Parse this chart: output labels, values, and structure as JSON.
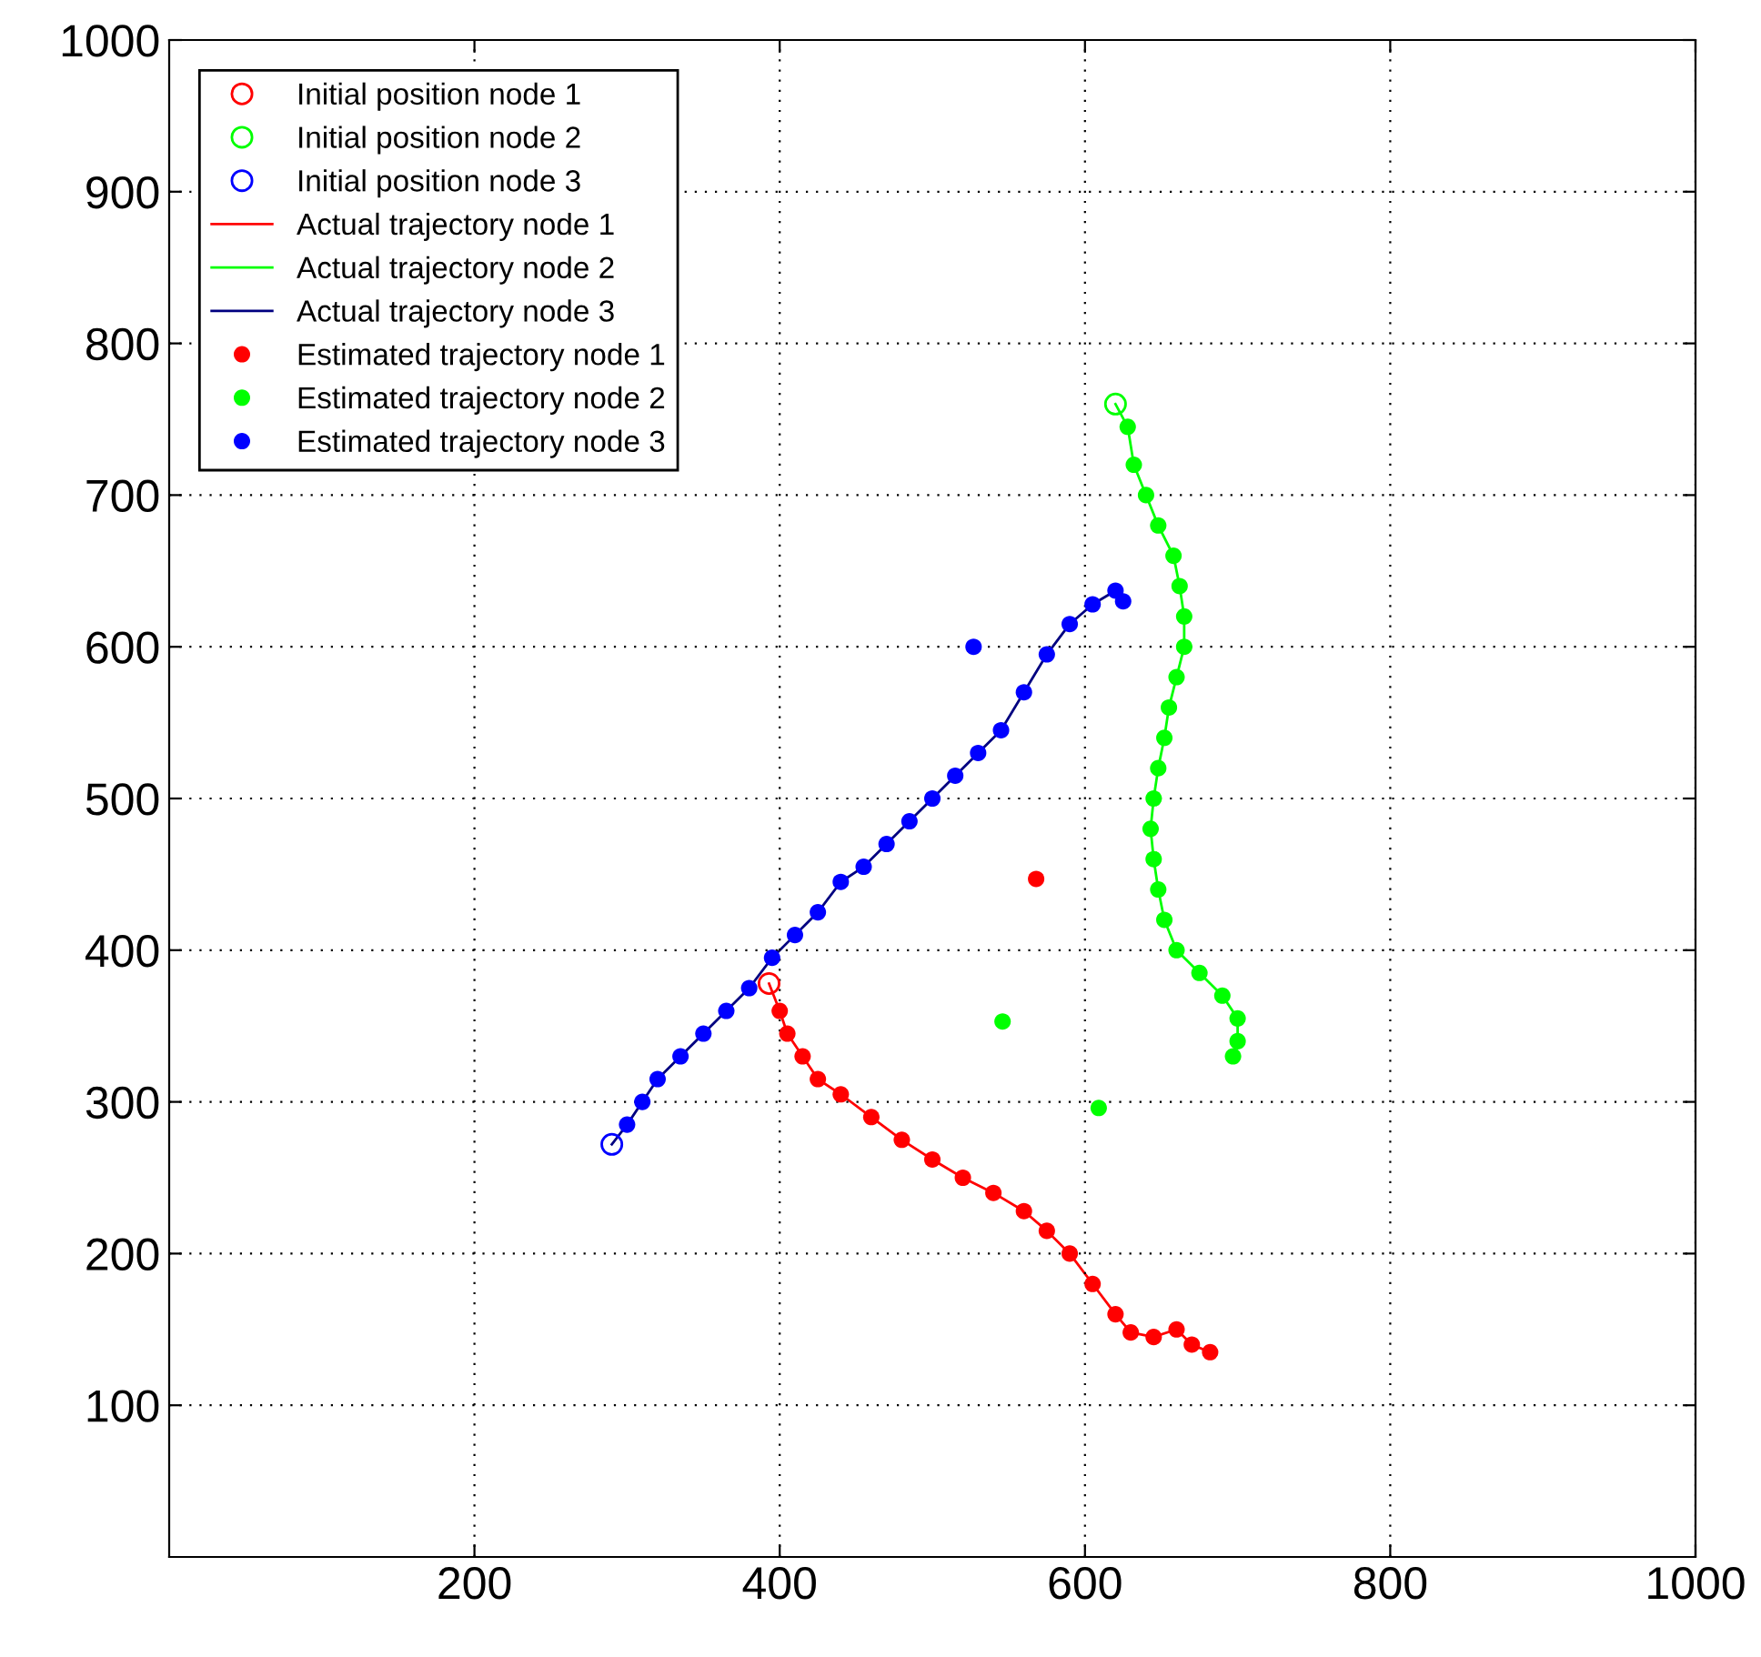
{
  "chart_data": {
    "type": "scatter",
    "xlim": [
      0,
      1000
    ],
    "ylim": [
      0,
      1000
    ],
    "xticks": [
      200,
      400,
      600,
      800,
      1000
    ],
    "yticks": [
      100,
      200,
      300,
      400,
      500,
      600,
      700,
      800,
      900,
      1000
    ],
    "grid": true,
    "legend": "top left",
    "series": [
      {
        "name": "Initial position node 1",
        "marker": "circle",
        "color": "#ff0000",
        "x": [
          393
        ],
        "values": [
          378
        ]
      },
      {
        "name": "Initial position node 2",
        "marker": "circle",
        "color": "#00ff00",
        "x": [
          620
        ],
        "values": [
          760
        ]
      },
      {
        "name": "Initial position node 3",
        "marker": "circle",
        "color": "#0000ff",
        "x": [
          290
        ],
        "values": [
          272
        ]
      },
      {
        "name": "Actual trajectory node 1",
        "type": "line",
        "color": "#ff0000",
        "x": [
          393,
          400,
          405,
          415,
          425,
          440,
          460,
          480,
          500,
          520,
          540,
          560,
          575,
          590,
          605,
          620,
          630,
          645,
          660,
          670,
          682
        ],
        "values": [
          378,
          360,
          345,
          330,
          315,
          305,
          290,
          275,
          262,
          250,
          240,
          228,
          215,
          200,
          180,
          160,
          148,
          145,
          150,
          140,
          135
        ]
      },
      {
        "name": "Actual trajectory node 2",
        "type": "line",
        "color": "#00ff00",
        "x": [
          620,
          628,
          632,
          640,
          648,
          658,
          662,
          665,
          665,
          660,
          655,
          652,
          648,
          645,
          643,
          645,
          648,
          652,
          660,
          675,
          690,
          700,
          700,
          697
        ],
        "values": [
          760,
          745,
          720,
          700,
          680,
          660,
          640,
          620,
          600,
          580,
          560,
          540,
          520,
          500,
          480,
          460,
          440,
          420,
          400,
          385,
          370,
          355,
          340,
          330
        ]
      },
      {
        "name": "Actual trajectory node 3",
        "type": "line",
        "color": "#000080",
        "x": [
          290,
          300,
          310,
          320,
          335,
          350,
          365,
          380,
          395,
          410,
          425,
          440,
          455,
          470,
          485,
          500,
          515,
          530,
          545,
          560,
          575,
          590,
          605,
          620,
          625
        ],
        "values": [
          272,
          285,
          300,
          315,
          330,
          345,
          360,
          375,
          395,
          410,
          425,
          445,
          455,
          470,
          485,
          500,
          515,
          530,
          545,
          570,
          595,
          615,
          628,
          637,
          630
        ]
      },
      {
        "name": "Estimated trajectory node 1",
        "marker": "dot",
        "color": "#ff0000",
        "x": [
          400,
          405,
          415,
          425,
          440,
          460,
          480,
          500,
          520,
          540,
          560,
          575,
          590,
          605,
          620,
          630,
          645,
          660,
          670,
          682,
          568
        ],
        "values": [
          360,
          345,
          330,
          315,
          305,
          290,
          275,
          262,
          250,
          240,
          228,
          215,
          200,
          180,
          160,
          148,
          145,
          150,
          140,
          135,
          447
        ]
      },
      {
        "name": "Estimated trajectory node 2",
        "marker": "dot",
        "color": "#00ff00",
        "x": [
          628,
          632,
          640,
          648,
          658,
          662,
          665,
          665,
          660,
          655,
          652,
          648,
          645,
          643,
          645,
          648,
          652,
          660,
          675,
          690,
          700,
          700,
          697,
          546,
          609
        ],
        "values": [
          745,
          720,
          700,
          680,
          660,
          640,
          620,
          600,
          580,
          560,
          540,
          520,
          500,
          480,
          460,
          440,
          420,
          400,
          385,
          370,
          355,
          340,
          330,
          353,
          296
        ]
      },
      {
        "name": "Estimated trajectory node 3",
        "marker": "dot",
        "color": "#0000ff",
        "x": [
          300,
          310,
          320,
          335,
          350,
          365,
          380,
          395,
          410,
          425,
          440,
          455,
          470,
          485,
          500,
          515,
          530,
          545,
          560,
          575,
          590,
          605,
          620,
          625,
          527
        ],
        "values": [
          285,
          300,
          315,
          330,
          345,
          360,
          375,
          395,
          410,
          425,
          445,
          455,
          470,
          485,
          500,
          515,
          530,
          545,
          570,
          595,
          615,
          628,
          637,
          630,
          600
        ]
      }
    ]
  }
}
